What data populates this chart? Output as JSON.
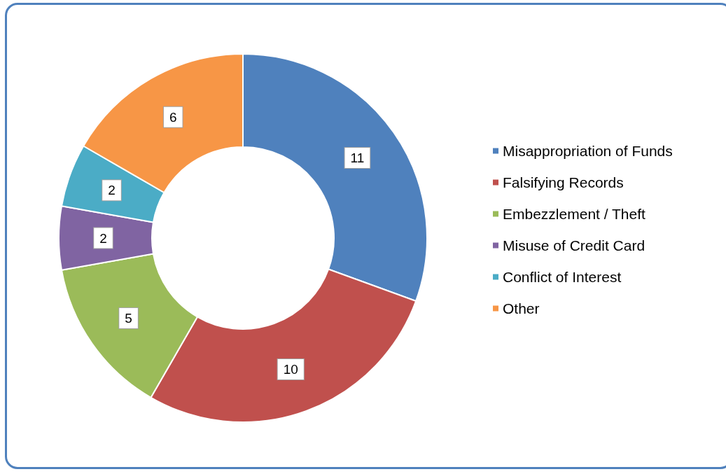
{
  "chart_data": {
    "type": "donut",
    "categories": [
      "Misappropriation of Funds",
      "Falsifying Records",
      "Embezzlement / Theft",
      "Misuse of Credit Card",
      "Conflict of Interest",
      "Other"
    ],
    "values": [
      11,
      10,
      5,
      2,
      2,
      6
    ],
    "colors": [
      "#4f81bd",
      "#c0504d",
      "#9bbb59",
      "#8064a2",
      "#4bacc6",
      "#f79646"
    ],
    "data_labels": true,
    "legend": "right"
  }
}
